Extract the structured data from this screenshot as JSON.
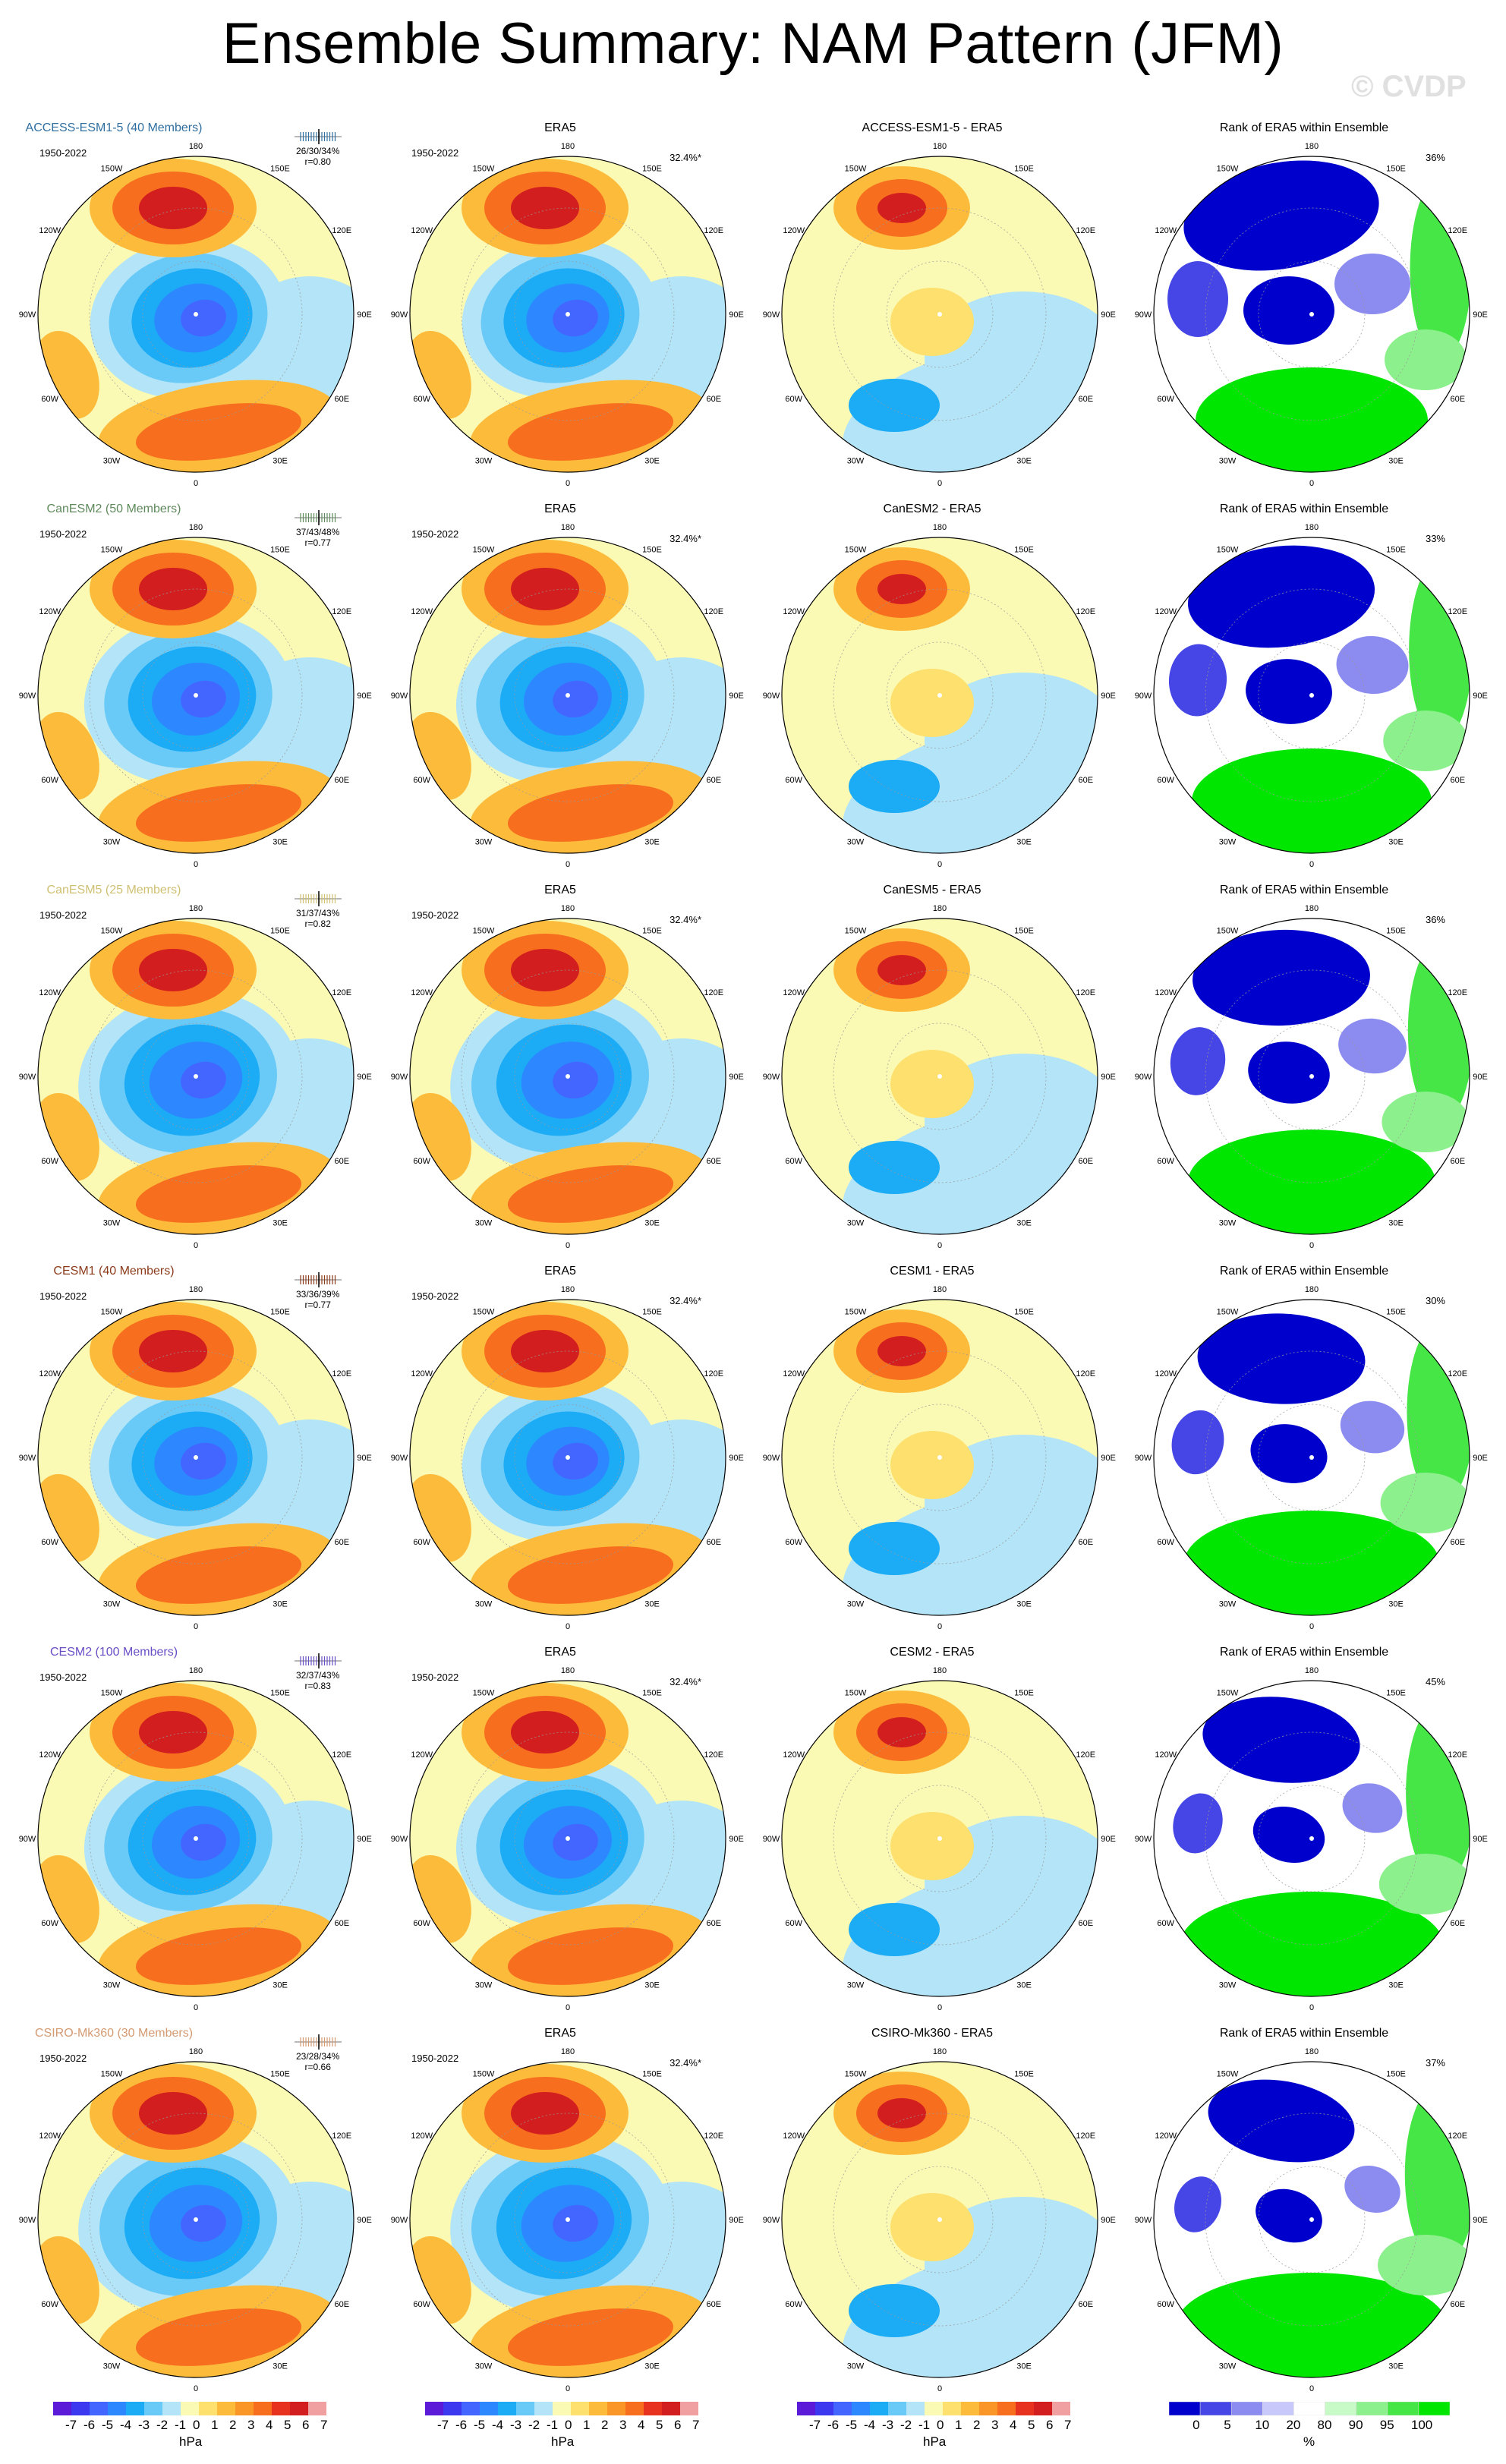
{
  "title": "Ensemble Summary: NAM Pattern (JFM)",
  "watermark": "© CVDP",
  "common": {
    "years": "1950-2022",
    "era5_title": "ERA5",
    "era5_stat": "32.4%*",
    "rank_title": "Rank of ERA5 within Ensemble",
    "lon_labels": [
      "180",
      "150E",
      "120E",
      "90E",
      "60E",
      "30E",
      "0",
      "30W",
      "60W",
      "90W",
      "120W",
      "150W"
    ]
  },
  "colors": {
    "contour": [
      "#5a1ad8",
      "#3c38f0",
      "#4266ff",
      "#2d88ff",
      "#1cabf5",
      "#69caf7",
      "#b4e4f7",
      "#fafab4",
      "#fde06e",
      "#fdbb3c",
      "#fa9628",
      "#f66e1e",
      "#e6321e",
      "#d21e1e",
      "#f0a0a0"
    ],
    "rank": [
      "#0000cd",
      "#4646e6",
      "#8c8cf0",
      "#c8c8fa",
      "#ffffff",
      "#c8fac8",
      "#8cf08c",
      "#46e646",
      "#00e600"
    ]
  },
  "rows": [
    {
      "model": "ACCESS-ESM1-5 (40 Members)",
      "color": "#2f6fa0",
      "stats": [
        "26/30/34%",
        "r=0.80"
      ],
      "model_stat": "",
      "diff_title": "ACCESS-ESM1-5 - ERA5",
      "rank_stat": "36%"
    },
    {
      "model": "CanESM2 (50 Members)",
      "color": "#5f8a5c",
      "stats": [
        "37/43/48%",
        "r=0.77"
      ],
      "model_stat": "",
      "diff_title": "CanESM2 - ERA5",
      "rank_stat": "33%"
    },
    {
      "model": "CanESM5 (25 Members)",
      "color": "#cfc072",
      "stats": [
        "31/37/43%",
        "r=0.82"
      ],
      "model_stat": "",
      "diff_title": "CanESM5 - ERA5",
      "rank_stat": "36%"
    },
    {
      "model": "CESM1 (40 Members)",
      "color": "#8b3a1a",
      "stats": [
        "33/36/39%",
        "r=0.77"
      ],
      "model_stat": "",
      "diff_title": "CESM1 - ERA5",
      "rank_stat": "30%"
    },
    {
      "model": "CESM2 (100 Members)",
      "color": "#6a4ec6",
      "stats": [
        "32/37/43%",
        "r=0.83"
      ],
      "model_stat": "",
      "diff_title": "CESM2 - ERA5",
      "rank_stat": "45%"
    },
    {
      "model": "CSIRO-Mk360 (30 Members)",
      "color": "#d49a72",
      "stats": [
        "23/28/34%",
        "r=0.66"
      ],
      "model_stat": "",
      "diff_title": "CSIRO-Mk360 - ERA5",
      "rank_stat": "37%"
    }
  ],
  "colorbars": {
    "contour_ticks": [
      "-7",
      "-6",
      "-5",
      "-4",
      "-3",
      "-2",
      "-1",
      "0",
      "1",
      "2",
      "3",
      "4",
      "5",
      "6",
      "7"
    ],
    "contour_unit": "hPa",
    "rank_ticks": [
      "0",
      "5",
      "10",
      "20",
      "80",
      "90",
      "95",
      "100"
    ],
    "rank_unit": "%"
  }
}
